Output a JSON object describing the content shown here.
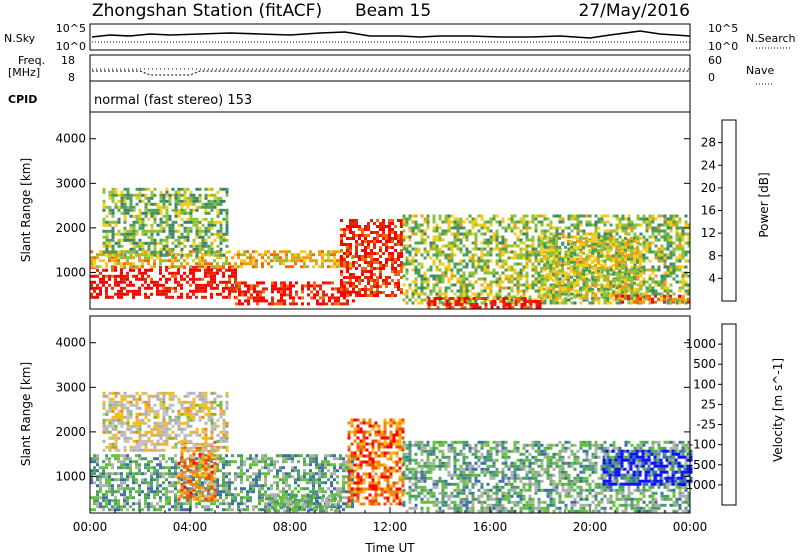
{
  "header": {
    "title": "Zhongshan Station (fitACF)",
    "beam": "Beam 15",
    "date": "27/May/2016"
  },
  "noise_panel": {
    "left_label": "N.Sky",
    "right_label": "N.Search",
    "tick_top": "10^5",
    "tick_bottom": "10^0",
    "right_tick_top": "10^5",
    "right_tick_bottom": "10^0"
  },
  "freq_panel": {
    "left_label_1": "Freq.",
    "left_label_2": "[MHz]",
    "left_tick_top": "18",
    "left_tick_bottom": "8",
    "right_label": "Nave",
    "right_tick_top": "60",
    "right_tick_bottom": "0"
  },
  "cpid_panel": {
    "label": "CPID",
    "text": "normal (fast stereo) 153"
  },
  "chart_data": [
    {
      "type": "heatmap",
      "ylabel": "Slant Range [km]",
      "yticks": [
        "1000",
        "2000",
        "3000",
        "4000"
      ],
      "ylim": [
        180,
        4600
      ],
      "xlim_hours": [
        0,
        24
      ],
      "colorbar": {
        "label": "Power [dB]",
        "ticks": [
          "4",
          "8",
          "12",
          "16",
          "20",
          "24",
          "28"
        ],
        "colors": [
          "#1010ff",
          "#2d56b8",
          "#3c7f74",
          "#4c9f55",
          "#8fc23b",
          "#f6cc1a",
          "#f79a12",
          "#ee6b0d",
          "#e22808",
          "#ff0000"
        ]
      },
      "regions": [
        {
          "t0": 0.0,
          "t1": 5.8,
          "r0": 450,
          "r1": 1150,
          "level": 0.95
        },
        {
          "t0": 5.8,
          "t1": 10.5,
          "r0": 300,
          "r1": 800,
          "level": 0.9
        },
        {
          "t0": 0.0,
          "t1": 10.5,
          "r0": 1100,
          "r1": 1500,
          "level": 0.6
        },
        {
          "t0": 0.5,
          "t1": 5.5,
          "r0": 1400,
          "r1": 2900,
          "level": 0.4
        },
        {
          "t0": 10.0,
          "t1": 12.5,
          "r0": 500,
          "r1": 2200,
          "level": 0.88
        },
        {
          "t0": 12.5,
          "t1": 24.0,
          "r0": 300,
          "r1": 2300,
          "level": 0.45
        },
        {
          "t0": 13.5,
          "t1": 18.0,
          "r0": 200,
          "r1": 450,
          "level": 0.92
        },
        {
          "t0": 18.0,
          "t1": 22.0,
          "r0": 400,
          "r1": 1800,
          "level": 0.5
        },
        {
          "t0": 21.0,
          "t1": 24.0,
          "r0": 300,
          "r1": 500,
          "level": 0.8
        }
      ]
    },
    {
      "type": "heatmap",
      "ylabel": "Slant Range [km]",
      "xlabel": "Time UT",
      "yticks": [
        "1000",
        "2000",
        "3000",
        "4000"
      ],
      "ylim": [
        180,
        4600
      ],
      "xlim_hours": [
        0,
        24
      ],
      "xticks": [
        "00:00",
        "04:00",
        "08:00",
        "12:00",
        "16:00",
        "20:00",
        "00:00"
      ],
      "colorbar": {
        "label": "Velocity [m s^-1]",
        "ticks": [
          "-1000",
          "-500",
          "-100",
          "-25",
          "25",
          "100",
          "500",
          "1000"
        ],
        "colors": [
          "#ff0000",
          "#ee4a0c",
          "#f18a12",
          "#f6ba1a",
          "#c0c0c0",
          "#b0b0b0",
          "#66c140",
          "#4f9d6a",
          "#3f6fa8",
          "#1010ff"
        ]
      },
      "regions": [
        {
          "t0": 0.0,
          "t1": 10.5,
          "r0": 250,
          "r1": 1500,
          "level": 0.7
        },
        {
          "t0": 3.5,
          "t1": 5.0,
          "r0": 500,
          "r1": 1800,
          "level": 0.25
        },
        {
          "t0": 0.5,
          "t1": 5.5,
          "r0": 1600,
          "r1": 2900,
          "level": 0.45
        },
        {
          "t0": 10.3,
          "t1": 12.5,
          "r0": 400,
          "r1": 2300,
          "level": 0.2
        },
        {
          "t0": 12.5,
          "t1": 24.0,
          "r0": 250,
          "r1": 1800,
          "level": 0.68
        },
        {
          "t0": 20.5,
          "t1": 24.0,
          "r0": 800,
          "r1": 1600,
          "level": 0.95
        },
        {
          "t0": 7.0,
          "t1": 10.0,
          "r0": 250,
          "r1": 600,
          "level": 0.68
        }
      ]
    }
  ]
}
